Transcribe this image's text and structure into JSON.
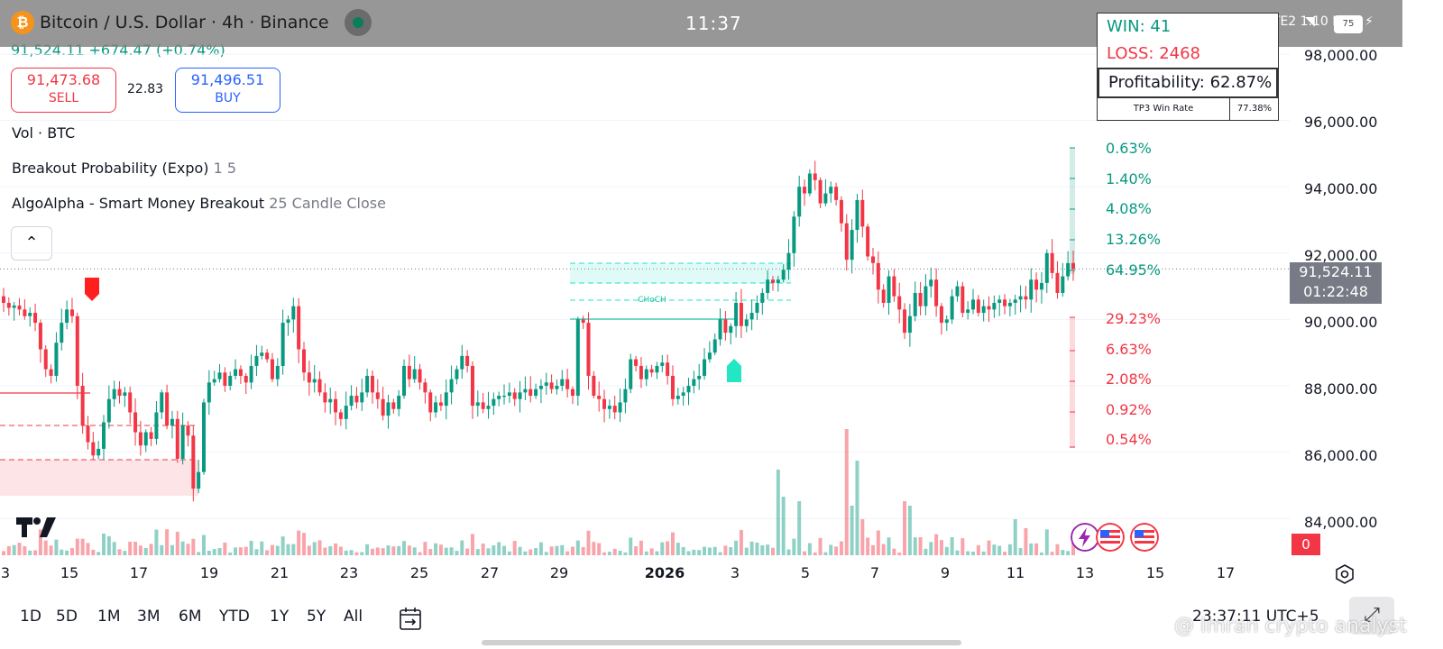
{
  "status_bar": {
    "clock": "11:37",
    "right_icons": "✱ ⏰ Vo) LTE2 1.10 KB/s",
    "battery": "75"
  },
  "symbol": {
    "logo": "₿",
    "title": "Bitcoin / U.S. Dollar · 4h · Binance",
    "price_line": "91,524.11 +674.47 (+0.74%)"
  },
  "trade": {
    "sell_price": "91,473.68",
    "sell_label": "SELL",
    "spread": "22.83",
    "buy_price": "91,496.51",
    "buy_label": "BUY"
  },
  "legends": {
    "vol": "Vol · BTC",
    "breakout_name": "Breakout Probability (Expo)",
    "breakout_params": "1 5",
    "algo_name": "AlgoAlpha - Smart Money Breakout",
    "algo_params": "25 Candle Close"
  },
  "stats": {
    "win": "WIN: 41",
    "loss": "LOSS: 2468",
    "profitability": "Profitability: 62.87%",
    "tp3_label": "TP3 Win Rate",
    "tp3_value": "77.38%"
  },
  "price_axis": [
    "98,000.00",
    "96,000.00",
    "94,000.00",
    "92,000.00",
    "90,000.00",
    "88,000.00",
    "86,000.00",
    "84,000.00"
  ],
  "last_price": {
    "price": "91,524.11",
    "countdown": "01:22:48"
  },
  "volume_badge": "0",
  "breakout_levels": {
    "up": [
      "0.63%",
      "1.40%",
      "4.08%",
      "13.26%",
      "64.95%"
    ],
    "down": [
      "29.23%",
      "6.63%",
      "2.08%",
      "0.92%",
      "0.54%"
    ]
  },
  "choch_label": "CHoCH",
  "time_axis": [
    "3",
    "15",
    "17",
    "19",
    "21",
    "23",
    "25",
    "27",
    "29",
    "2026",
    "3",
    "5",
    "7",
    "9",
    "11",
    "13",
    "15",
    "17"
  ],
  "ranges": [
    "1D",
    "5D",
    "1M",
    "3M",
    "6M",
    "YTD",
    "1Y",
    "5Y",
    "All"
  ],
  "utc": "23:37:11 UTC+5",
  "watermark": "@ Imran crypto analyst",
  "colors": {
    "up": "#089981",
    "down": "#f23645",
    "accent": "#2962ff"
  },
  "chart_data": {
    "type": "candlestick",
    "interval": "4h",
    "ylim": [
      83000,
      99000
    ],
    "last_price": 91524.11,
    "x_ticks": [
      "3",
      "15",
      "17",
      "19",
      "21",
      "23",
      "25",
      "27",
      "29",
      "2026",
      "3",
      "5",
      "7",
      "9",
      "11",
      "13",
      "15",
      "17"
    ],
    "closes": [
      90500,
      90350,
      90420,
      90300,
      90100,
      90200,
      89900,
      89100,
      88500,
      88300,
      89300,
      89900,
      90300,
      90100,
      88000,
      86800,
      86300,
      85900,
      86100,
      86900,
      87600,
      87900,
      87700,
      87800,
      87200,
      86600,
      86200,
      86600,
      86400,
      87200,
      87800,
      86800,
      87000,
      85800,
      86800,
      86500,
      84900,
      85400,
      87500,
      88100,
      88200,
      88400,
      88000,
      88300,
      88500,
      88300,
      88100,
      88600,
      88900,
      89000,
      88800,
      88200,
      88600,
      89900,
      90000,
      90400,
      89100,
      88400,
      88100,
      88200,
      87800,
      87500,
      87600,
      87200,
      87000,
      87400,
      87700,
      87500,
      87800,
      88300,
      87800,
      87600,
      87100,
      87500,
      87300,
      87700,
      88600,
      88200,
      88500,
      88100,
      87800,
      87200,
      87500,
      87400,
      87800,
      88200,
      88500,
      88900,
      88600,
      87400,
      87500,
      87300,
      87400,
      87600,
      87700,
      87700,
      87800,
      87600,
      87800,
      87900,
      87700,
      87900,
      88000,
      88100,
      87900,
      88000,
      88200,
      87900,
      87700,
      90000,
      89900,
      88300,
      87700,
      87600,
      87300,
      87400,
      87200,
      87500,
      87900,
      88800,
      88600,
      88200,
      88500,
      88400,
      88600,
      88700,
      88300,
      87600,
      87700,
      87800,
      88000,
      88200,
      88300,
      88800,
      89000,
      89400,
      90000,
      89600,
      89800,
      90500,
      89800,
      90000,
      90200,
      90500,
      90800,
      91200,
      91100,
      91200,
      91500,
      92000,
      93100,
      94000,
      93800,
      94400,
      94200,
      93500,
      93800,
      94000,
      93600,
      92900,
      91800,
      92700,
      93600,
      92800,
      91900,
      91700,
      90900,
      90500,
      91300,
      90700,
      90300,
      89600,
      90100,
      90800,
      90400,
      91000,
      91200,
      90400,
      89900,
      90000,
      90700,
      91000,
      90200,
      90300,
      90600,
      90200,
      90400,
      90300,
      90500,
      90600,
      90400,
      90500,
      90600,
      90700,
      90600,
      91200,
      90900,
      91100,
      92000,
      91400,
      90800,
      91300,
      91700,
      91524
    ]
  }
}
